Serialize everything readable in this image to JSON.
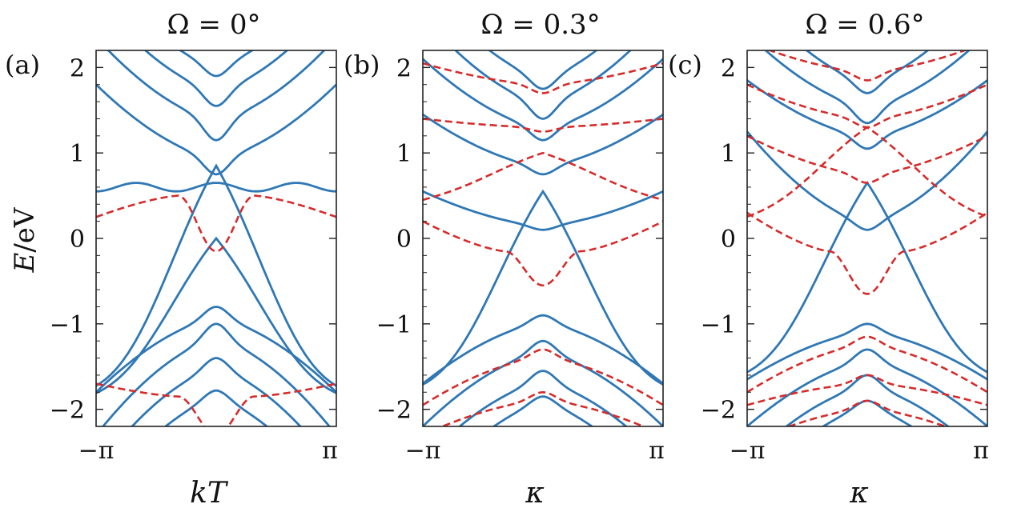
{
  "figure": {
    "ylabel_italic": "E",
    "ylabel_rest": "/eV"
  },
  "chart_data": [
    {
      "type": "line",
      "panel_label": "(a)",
      "title": "Ω = 0°",
      "xlabel": "kT",
      "xlim": [
        -3.14159,
        3.14159
      ],
      "ylim": [
        -2.2,
        2.2
      ],
      "yticks": [
        -2,
        -1,
        0,
        1,
        2
      ],
      "yticklabels": [
        "−2",
        "−1",
        "0",
        "1",
        "2"
      ],
      "xticklabels": [
        "−π",
        "π"
      ],
      "grid": false,
      "series": [
        {
          "color": "#2f78b5",
          "style": "solid",
          "shape": "vee",
          "apex": 0.0,
          "edge": -1.9,
          "k": 1.55
        },
        {
          "color": "#2f78b5",
          "style": "solid",
          "shape": "vee",
          "apex": 0.85,
          "edge": -1.9,
          "k": 1.55
        },
        {
          "color": "#2f78b5",
          "style": "solid",
          "shape": "wave",
          "center": 0.6,
          "amp": 0.05
        },
        {
          "color": "#2f78b5",
          "style": "solid",
          "shape": "band",
          "edge": 1.8,
          "mid": 0.95,
          "w": 0.2
        },
        {
          "color": "#2f78b5",
          "style": "solid",
          "shape": "band",
          "edge": 2.35,
          "mid": 1.4,
          "w": 0.25
        },
        {
          "color": "#2f78b5",
          "style": "solid",
          "shape": "band",
          "edge": 2.8,
          "mid": 1.75,
          "w": 0.2
        },
        {
          "color": "#2f78b5",
          "style": "solid",
          "shape": "band",
          "edge": 3.1,
          "mid": 2.05,
          "w": 0.15
        },
        {
          "color": "#2f78b5",
          "style": "solid",
          "shape": "band",
          "edge": -1.8,
          "mid": -0.95,
          "w": -0.15
        },
        {
          "color": "#2f78b5",
          "style": "solid",
          "shape": "band",
          "edge": -2.3,
          "mid": -1.2,
          "w": -0.2
        },
        {
          "color": "#2f78b5",
          "style": "solid",
          "shape": "band",
          "edge": -2.7,
          "mid": -1.55,
          "w": -0.15
        },
        {
          "color": "#2f78b5",
          "style": "solid",
          "shape": "band",
          "edge": -3.1,
          "mid": -1.9,
          "w": -0.12
        },
        {
          "color": "#d62b2b",
          "style": "dashed",
          "shape": "wdip",
          "edge": 0.25,
          "top": 0.5,
          "bottom": -0.15,
          "k": 1.7
        },
        {
          "color": "#d62b2b",
          "style": "dashed",
          "shape": "wdip",
          "edge": -1.7,
          "top": -1.85,
          "bottom": -2.3,
          "k": 1.7
        }
      ]
    },
    {
      "type": "line",
      "panel_label": "(b)",
      "title": "Ω = 0.3°",
      "xlabel": "κ",
      "xlim": [
        -3.14159,
        3.14159
      ],
      "ylim": [
        -2.2,
        2.2
      ],
      "yticks": [
        -2,
        -1,
        0,
        1,
        2
      ],
      "yticklabels": [
        "−2",
        "−1",
        "0",
        "1",
        "2"
      ],
      "xticklabels": [
        "−π",
        "π"
      ],
      "grid": false,
      "series": [
        {
          "color": "#2f78b5",
          "style": "solid",
          "shape": "vee",
          "apex": 0.55,
          "edge": -1.85,
          "k": 1.5
        },
        {
          "color": "#2f78b5",
          "style": "solid",
          "shape": "band",
          "edge": 0.55,
          "mid": 0.15,
          "w": 0.05
        },
        {
          "color": "#2f78b5",
          "style": "solid",
          "shape": "band",
          "edge": 1.45,
          "mid": 0.85,
          "w": 0.1
        },
        {
          "color": "#2f78b5",
          "style": "solid",
          "shape": "band",
          "edge": 2.1,
          "mid": 1.3,
          "w": 0.15
        },
        {
          "color": "#2f78b5",
          "style": "solid",
          "shape": "band",
          "edge": 2.6,
          "mid": 1.6,
          "w": 0.2
        },
        {
          "color": "#2f78b5",
          "style": "solid",
          "shape": "band",
          "edge": 3.0,
          "mid": 1.9,
          "w": 0.15
        },
        {
          "color": "#2f78b5",
          "style": "solid",
          "shape": "band",
          "edge": -1.7,
          "mid": -1.0,
          "w": -0.1
        },
        {
          "color": "#2f78b5",
          "style": "solid",
          "shape": "band",
          "edge": -2.2,
          "mid": -1.35,
          "w": -0.15
        },
        {
          "color": "#2f78b5",
          "style": "solid",
          "shape": "band",
          "edge": -2.6,
          "mid": -1.7,
          "w": -0.15
        },
        {
          "color": "#2f78b5",
          "style": "solid",
          "shape": "band",
          "edge": -3.0,
          "mid": -1.95,
          "w": -0.1
        },
        {
          "color": "#d62b2b",
          "style": "dashed",
          "shape": "vee",
          "apex": 1.0,
          "edge": 0.5,
          "k": 1.2
        },
        {
          "color": "#d62b2b",
          "style": "dashed",
          "shape": "wdip",
          "edge": 0.2,
          "top": -0.15,
          "bottom": -0.55,
          "k": 1.6
        },
        {
          "color": "#d62b2b",
          "style": "dashed",
          "shape": "band",
          "edge": 1.4,
          "mid": 1.3,
          "w": 0.05
        },
        {
          "color": "#d62b2b",
          "style": "dashed",
          "shape": "band",
          "edge": 2.05,
          "mid": 1.8,
          "w": 0.1
        },
        {
          "color": "#d62b2b",
          "style": "dashed",
          "shape": "band",
          "edge": -1.95,
          "mid": -1.4,
          "w": -0.1
        },
        {
          "color": "#d62b2b",
          "style": "dashed",
          "shape": "band",
          "edge": -2.3,
          "mid": -1.9,
          "w": -0.1
        }
      ]
    },
    {
      "type": "line",
      "panel_label": "(c)",
      "title": "Ω = 0.6°",
      "xlabel": "κ",
      "xlim": [
        -3.14159,
        3.14159
      ],
      "ylim": [
        -2.2,
        2.2
      ],
      "yticks": [
        -2,
        -1,
        0,
        1,
        2
      ],
      "yticklabels": [
        "−2",
        "−1",
        "0",
        "1",
        "2"
      ],
      "xticklabels": [
        "−π",
        "π"
      ],
      "grid": false,
      "series": [
        {
          "color": "#2f78b5",
          "style": "solid",
          "shape": "vee",
          "apex": 0.65,
          "edge": -1.7,
          "k": 1.5
        },
        {
          "color": "#2f78b5",
          "style": "solid",
          "shape": "band",
          "edge": 1.25,
          "mid": 0.2,
          "w": 0.1
        },
        {
          "color": "#2f78b5",
          "style": "solid",
          "shape": "band",
          "edge": 1.85,
          "mid": 1.2,
          "w": 0.15
        },
        {
          "color": "#2f78b5",
          "style": "solid",
          "shape": "band",
          "edge": 2.4,
          "mid": 1.55,
          "w": 0.2
        },
        {
          "color": "#2f78b5",
          "style": "solid",
          "shape": "band",
          "edge": 2.9,
          "mid": 1.85,
          "w": 0.15
        },
        {
          "color": "#2f78b5",
          "style": "solid",
          "shape": "band",
          "edge": -1.65,
          "mid": -1.1,
          "w": -0.1
        },
        {
          "color": "#2f78b5",
          "style": "solid",
          "shape": "band",
          "edge": -2.2,
          "mid": -1.45,
          "w": -0.15
        },
        {
          "color": "#2f78b5",
          "style": "solid",
          "shape": "band",
          "edge": -2.6,
          "mid": -1.75,
          "w": -0.15
        },
        {
          "color": "#2f78b5",
          "style": "solid",
          "shape": "band",
          "edge": -3.0,
          "mid": -2.0,
          "w": -0.1
        },
        {
          "color": "#d62b2b",
          "style": "dashed",
          "shape": "vee",
          "apex": 1.3,
          "edge": 0.25,
          "k": 1.2
        },
        {
          "color": "#d62b2b",
          "style": "dashed",
          "shape": "wdip",
          "edge": 0.3,
          "top": -0.15,
          "bottom": -0.65,
          "k": 1.6
        },
        {
          "color": "#d62b2b",
          "style": "dashed",
          "shape": "band",
          "edge": 1.2,
          "mid": 0.75,
          "w": 0.1
        },
        {
          "color": "#d62b2b",
          "style": "dashed",
          "shape": "band",
          "edge": 1.8,
          "mid": 1.4,
          "w": 0.1
        },
        {
          "color": "#d62b2b",
          "style": "dashed",
          "shape": "band",
          "edge": 2.3,
          "mid": 1.95,
          "w": 0.1
        },
        {
          "color": "#d62b2b",
          "style": "dashed",
          "shape": "band",
          "edge": -1.8,
          "mid": -1.25,
          "w": -0.1
        },
        {
          "color": "#d62b2b",
          "style": "dashed",
          "shape": "band",
          "edge": -1.95,
          "mid": -1.7,
          "w": -0.1
        },
        {
          "color": "#d62b2b",
          "style": "dashed",
          "shape": "band",
          "edge": -2.4,
          "mid": -2.0,
          "w": -0.1
        }
      ]
    }
  ]
}
